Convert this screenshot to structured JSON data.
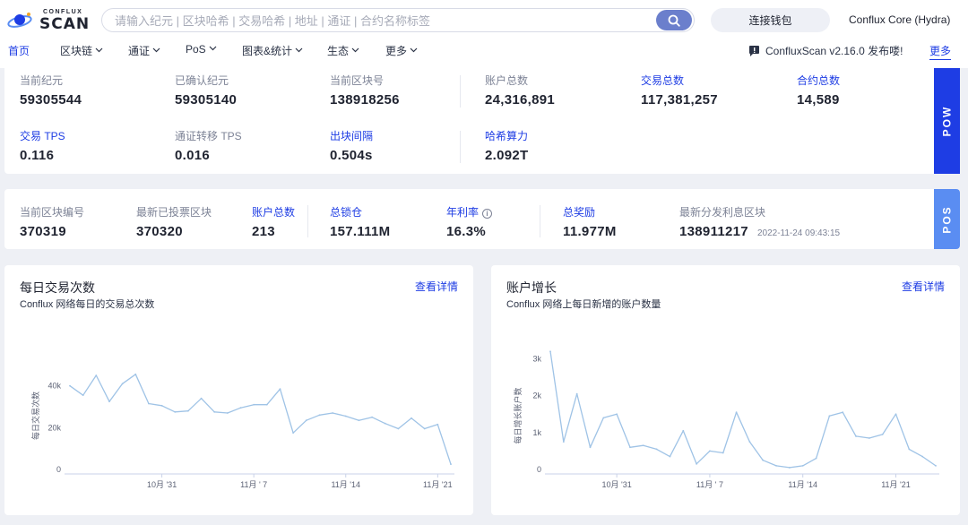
{
  "header": {
    "logo_top": "CONFLUX",
    "logo_bottom": "SCAN",
    "search_placeholder": "请输入纪元 | 区块哈希 | 交易哈希 | 地址 | 通证 | 合约名称标签",
    "wallet_button": "连接钱包",
    "network": "Conflux Core (Hydra)"
  },
  "nav": {
    "items": [
      {
        "label": "首页",
        "dropdown": false,
        "active": true
      },
      {
        "label": "区块链",
        "dropdown": true
      },
      {
        "label": "通证",
        "dropdown": true
      },
      {
        "label": "PoS",
        "dropdown": true
      },
      {
        "label": "图表&统计",
        "dropdown": true
      },
      {
        "label": "生态",
        "dropdown": true
      },
      {
        "label": "更多",
        "dropdown": true
      }
    ],
    "notice": "ConfluxScan v2.16.0 发布喽!",
    "more_link": "更多"
  },
  "pow": {
    "tab": "POW",
    "stats": [
      {
        "label": "当前纪元",
        "value": "59305544",
        "link": false
      },
      {
        "label": "已确认纪元",
        "value": "59305140",
        "link": false
      },
      {
        "label": "当前区块号",
        "value": "138918256",
        "link": false
      },
      {
        "label": "账户总数",
        "value": "24,316,891",
        "link": false
      },
      {
        "label": "交易总数",
        "value": "117,381,257",
        "link": true
      },
      {
        "label": "合约总数",
        "value": "14,589",
        "link": true
      },
      {
        "label": "交易 TPS",
        "value": "0.116",
        "link": true
      },
      {
        "label": "通证转移 TPS",
        "value": "0.016",
        "link": false
      },
      {
        "label": "出块间隔",
        "value": "0.504s",
        "link": true
      },
      {
        "label": "哈希算力",
        "value": "2.092T",
        "link": true
      }
    ]
  },
  "pos": {
    "tab": "POS",
    "stats": [
      {
        "label": "当前区块编号",
        "value": "370319",
        "link": false
      },
      {
        "label": "最新已投票区块",
        "value": "370320",
        "link": false
      },
      {
        "label": "账户总数",
        "value": "213",
        "link": true
      },
      {
        "label": "总锁仓",
        "value": "157.111M",
        "link": true
      },
      {
        "label": "年利率",
        "value": "16.3%",
        "link": true,
        "info": true
      },
      {
        "label": "总奖励",
        "value": "11.977M",
        "link": true
      },
      {
        "label": "最新分发利息区块",
        "value": "138911217",
        "link": false,
        "timestamp": "2022-11-24 09:43:15"
      }
    ]
  },
  "panels": [
    {
      "title": "每日交易次数",
      "subtitle": "Conflux 网络每日的交易总次数",
      "more": "查看详情"
    },
    {
      "title": "账户增长",
      "subtitle": "Conflux 网络上每日新增的账户数量",
      "more": "查看详情"
    }
  ],
  "chart_data": [
    {
      "type": "line",
      "title": "",
      "ylabel": "每日交易次数",
      "xlabel": "",
      "ylim": [
        0,
        60000
      ],
      "yticks": [
        {
          "value": 0,
          "label": "0"
        },
        {
          "value": 20000,
          "label": "20k"
        },
        {
          "value": 40000,
          "label": "40k"
        }
      ],
      "xticks": [
        {
          "index": 7,
          "label": "10月 '31"
        },
        {
          "index": 14,
          "label": "11月 ' 7"
        },
        {
          "index": 21,
          "label": "11月 '14"
        },
        {
          "index": 28,
          "label": "11月 '21"
        }
      ],
      "color": "#9fc3e6",
      "values": [
        40000,
        35500,
        45000,
        32500,
        41000,
        45500,
        31500,
        30500,
        27500,
        28000,
        34000,
        27500,
        27000,
        29500,
        31000,
        31000,
        38500,
        17500,
        23500,
        26000,
        27000,
        25500,
        23500,
        25000,
        22000,
        19500,
        24500,
        19500,
        21500,
        2500
      ]
    },
    {
      "type": "line",
      "title": "",
      "ylabel": "每日增长账户数",
      "xlabel": "",
      "ylim": [
        0,
        3400
      ],
      "yticks": [
        {
          "value": 0,
          "label": "0"
        },
        {
          "value": 1000,
          "label": "1k"
        },
        {
          "value": 2000,
          "label": "2k"
        },
        {
          "value": 3000,
          "label": "3k"
        }
      ],
      "xticks": [
        {
          "index": 5,
          "label": "10月 '31"
        },
        {
          "index": 12,
          "label": "11月 ' 7"
        },
        {
          "index": 19,
          "label": "11月 '14"
        },
        {
          "index": 26,
          "label": "11月 '21"
        }
      ],
      "color": "#9fc3e6",
      "values": [
        3200,
        750,
        2050,
        600,
        1400,
        1500,
        600,
        650,
        550,
        350,
        1050,
        150,
        500,
        450,
        1550,
        750,
        250,
        100,
        50,
        100,
        300,
        1450,
        1550,
        900,
        850,
        950,
        1500,
        550,
        350,
        100
      ]
    }
  ]
}
